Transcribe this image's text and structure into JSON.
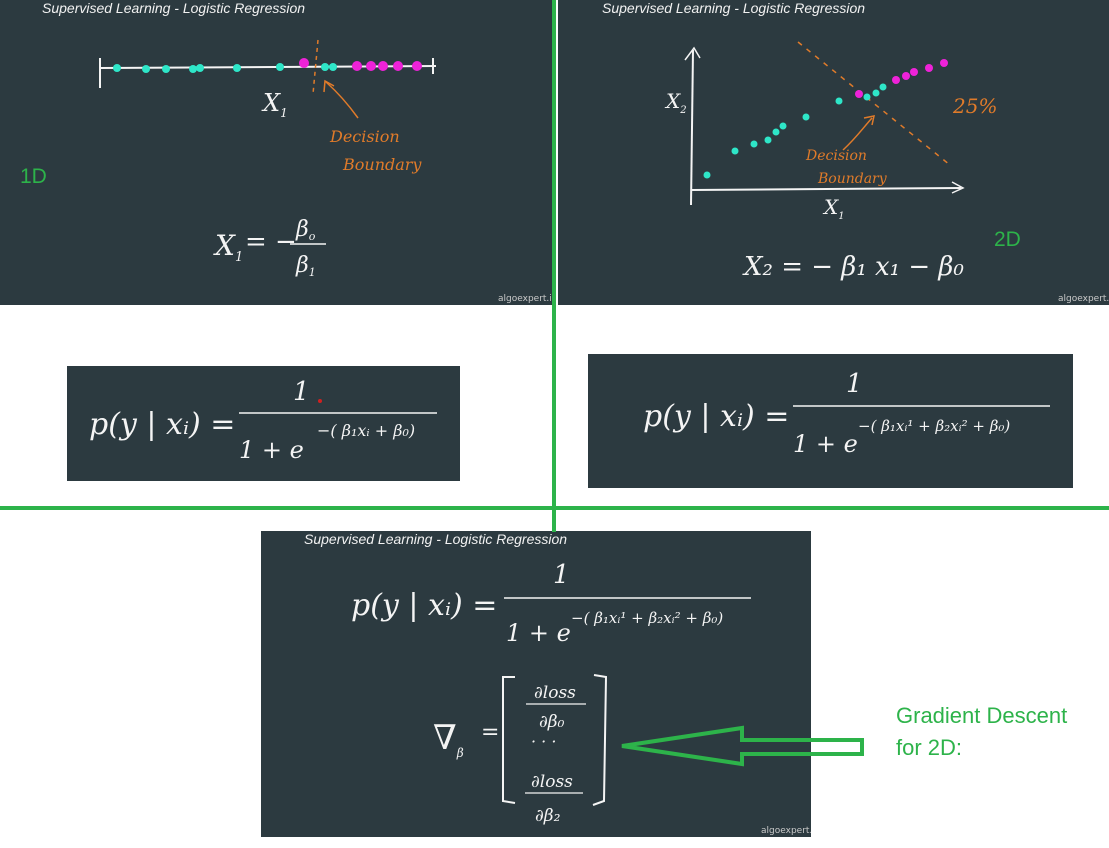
{
  "panels": {
    "p1d": {
      "title": "Supervised Learning - Logistic Regression",
      "watermark": "algoexpert.io",
      "axis_label": "X",
      "axis_sub": "1",
      "boundary_label_1": "Decision",
      "boundary_label_2": "Boundary",
      "formula_lhs": "X",
      "formula_lhs_sub": "1",
      "formula_eq": "= −",
      "formula_num": "β",
      "formula_num_sub": "o",
      "formula_den": "β",
      "formula_den_sub": "1"
    },
    "p2d": {
      "title": "Supervised Learning - Logistic Regression",
      "watermark": "algoexpert.io",
      "y_label": "X",
      "y_sub": "2",
      "x_label": "X",
      "x_sub": "1",
      "percent": "25%",
      "boundary_label_1": "Decision",
      "boundary_label_2": "Boundary",
      "formula": "X₂ = − β₁ x₁ − β₀"
    },
    "pbottom": {
      "title": "Supervised Learning - Logistic Regression",
      "watermark": "algoexpert.io",
      "formula_lhs": "p(y | xᵢ) =",
      "formula_num": "1",
      "formula_den": "1 + e",
      "formula_exp": "−( β₁xᵢ¹ + β₂xᵢ² + β₀)",
      "grad_symbol": "∇",
      "grad_sub": "β",
      "grad_eq": "=",
      "grad_top_num": "∂loss",
      "grad_top_den": "∂β₀",
      "grad_dots": "· · ·",
      "grad_bot_num": "∂loss",
      "grad_bot_den": "∂β₂"
    }
  },
  "formula_boxes": {
    "left": {
      "lhs": "p(y | xᵢ) =",
      "num": "1",
      "den": "1 + e",
      "exp": "−( β₁xᵢ + β₀)"
    },
    "right": {
      "lhs": "p(y | xᵢ) =",
      "num": "1",
      "den": "1 + e",
      "exp": "−( β₁xᵢ¹ + β₂xᵢ² + β₀)"
    }
  },
  "labels": {
    "one_d": "1D",
    "two_d": "2D",
    "gradient_line1": "Gradient Descent",
    "gradient_line2": "for 2D:"
  },
  "colors": {
    "panel_bg": "#2c3a40",
    "class_a": "#2ee6c8",
    "class_b": "#ee22d8",
    "annotation": "#e07b2a",
    "divider": "#2db34a"
  }
}
